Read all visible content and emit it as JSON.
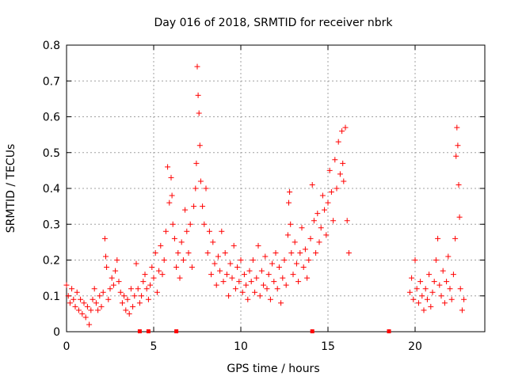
{
  "chart_data": {
    "type": "scatter",
    "title": "Day 016 of 2018, SRMTID for receiver nbrk",
    "xlabel": "GPS time / hours",
    "ylabel": "SRMTID / TECUs",
    "xlim": [
      0,
      24
    ],
    "ylim": [
      0,
      0.8
    ],
    "xticks": [
      0,
      5,
      10,
      15,
      20
    ],
    "yticks": [
      0,
      0.1,
      0.2,
      0.3,
      0.4,
      0.5,
      0.6,
      0.7,
      0.8
    ],
    "grid": true,
    "marker": "+",
    "color": "#ff0000",
    "gap_markers_x": [
      4.2,
      4.7,
      6.3,
      14.1,
      18.5
    ],
    "series": [
      {
        "name": "SRMTID",
        "points": [
          [
            0.0,
            0.13
          ],
          [
            0.1,
            0.1
          ],
          [
            0.2,
            0.08
          ],
          [
            0.3,
            0.12
          ],
          [
            0.4,
            0.09
          ],
          [
            0.5,
            0.07
          ],
          [
            0.6,
            0.11
          ],
          [
            0.7,
            0.06
          ],
          [
            0.8,
            0.09
          ],
          [
            0.9,
            0.05
          ],
          [
            1.0,
            0.08
          ],
          [
            1.1,
            0.04
          ],
          [
            1.2,
            0.07
          ],
          [
            1.3,
            0.02
          ],
          [
            1.4,
            0.06
          ],
          [
            1.5,
            0.09
          ],
          [
            1.6,
            0.12
          ],
          [
            1.7,
            0.08
          ],
          [
            1.8,
            0.06
          ],
          [
            1.9,
            0.1
          ],
          [
            2.0,
            0.07
          ],
          [
            2.1,
            0.11
          ],
          [
            2.2,
            0.26
          ],
          [
            2.25,
            0.21
          ],
          [
            2.3,
            0.18
          ],
          [
            2.4,
            0.09
          ],
          [
            2.5,
            0.12
          ],
          [
            2.6,
            0.15
          ],
          [
            2.7,
            0.13
          ],
          [
            2.8,
            0.17
          ],
          [
            2.9,
            0.2
          ],
          [
            3.0,
            0.14
          ],
          [
            3.1,
            0.11
          ],
          [
            3.2,
            0.08
          ],
          [
            3.3,
            0.1
          ],
          [
            3.4,
            0.06
          ],
          [
            3.5,
            0.09
          ],
          [
            3.6,
            0.05
          ],
          [
            3.7,
            0.12
          ],
          [
            3.8,
            0.07
          ],
          [
            3.9,
            0.1
          ],
          [
            4.0,
            0.19
          ],
          [
            4.1,
            0.12
          ],
          [
            4.2,
            0.08
          ],
          [
            4.3,
            0.1
          ],
          [
            4.4,
            0.14
          ],
          [
            4.5,
            0.16
          ],
          [
            4.6,
            0.12
          ],
          [
            4.7,
            0.09
          ],
          [
            4.8,
            0.13
          ],
          [
            4.9,
            0.18
          ],
          [
            5.0,
            0.15
          ],
          [
            5.1,
            0.22
          ],
          [
            5.2,
            0.11
          ],
          [
            5.3,
            0.17
          ],
          [
            5.4,
            0.24
          ],
          [
            5.5,
            0.16
          ],
          [
            5.6,
            0.2
          ],
          [
            5.7,
            0.28
          ],
          [
            5.8,
            0.46
          ],
          [
            5.9,
            0.36
          ],
          [
            6.0,
            0.43
          ],
          [
            6.05,
            0.38
          ],
          [
            6.1,
            0.3
          ],
          [
            6.2,
            0.26
          ],
          [
            6.3,
            0.18
          ],
          [
            6.4,
            0.22
          ],
          [
            6.5,
            0.15
          ],
          [
            6.6,
            0.25
          ],
          [
            6.7,
            0.2
          ],
          [
            6.8,
            0.34
          ],
          [
            6.9,
            0.28
          ],
          [
            7.0,
            0.22
          ],
          [
            7.1,
            0.3
          ],
          [
            7.2,
            0.18
          ],
          [
            7.3,
            0.35
          ],
          [
            7.4,
            0.4
          ],
          [
            7.45,
            0.47
          ],
          [
            7.5,
            0.74
          ],
          [
            7.55,
            0.66
          ],
          [
            7.6,
            0.61
          ],
          [
            7.65,
            0.52
          ],
          [
            7.7,
            0.42
          ],
          [
            7.8,
            0.35
          ],
          [
            7.9,
            0.3
          ],
          [
            8.0,
            0.4
          ],
          [
            8.1,
            0.22
          ],
          [
            8.2,
            0.28
          ],
          [
            8.3,
            0.16
          ],
          [
            8.4,
            0.25
          ],
          [
            8.5,
            0.19
          ],
          [
            8.6,
            0.13
          ],
          [
            8.7,
            0.21
          ],
          [
            8.8,
            0.17
          ],
          [
            8.9,
            0.28
          ],
          [
            9.0,
            0.14
          ],
          [
            9.1,
            0.22
          ],
          [
            9.2,
            0.16
          ],
          [
            9.3,
            0.1
          ],
          [
            9.4,
            0.19
          ],
          [
            9.5,
            0.15
          ],
          [
            9.6,
            0.24
          ],
          [
            9.7,
            0.12
          ],
          [
            9.8,
            0.18
          ],
          [
            9.9,
            0.14
          ],
          [
            10.0,
            0.2
          ],
          [
            10.1,
            0.11
          ],
          [
            10.2,
            0.16
          ],
          [
            10.3,
            0.13
          ],
          [
            10.4,
            0.09
          ],
          [
            10.5,
            0.17
          ],
          [
            10.6,
            0.14
          ],
          [
            10.7,
            0.2
          ],
          [
            10.8,
            0.11
          ],
          [
            10.9,
            0.15
          ],
          [
            11.0,
            0.24
          ],
          [
            11.1,
            0.1
          ],
          [
            11.2,
            0.17
          ],
          [
            11.3,
            0.13
          ],
          [
            11.4,
            0.21
          ],
          [
            11.5,
            0.12
          ],
          [
            11.6,
            0.16
          ],
          [
            11.7,
            0.09
          ],
          [
            11.8,
            0.19
          ],
          [
            11.9,
            0.14
          ],
          [
            12.0,
            0.22
          ],
          [
            12.1,
            0.12
          ],
          [
            12.2,
            0.18
          ],
          [
            12.3,
            0.08
          ],
          [
            12.4,
            0.15
          ],
          [
            12.5,
            0.2
          ],
          [
            12.6,
            0.13
          ],
          [
            12.7,
            0.27
          ],
          [
            12.75,
            0.36
          ],
          [
            12.8,
            0.39
          ],
          [
            12.85,
            0.3
          ],
          [
            12.9,
            0.22
          ],
          [
            13.0,
            0.16
          ],
          [
            13.1,
            0.25
          ],
          [
            13.2,
            0.19
          ],
          [
            13.3,
            0.14
          ],
          [
            13.4,
            0.22
          ],
          [
            13.5,
            0.29
          ],
          [
            13.6,
            0.18
          ],
          [
            13.7,
            0.23
          ],
          [
            13.8,
            0.15
          ],
          [
            13.9,
            0.2
          ],
          [
            14.0,
            0.26
          ],
          [
            14.1,
            0.41
          ],
          [
            14.2,
            0.31
          ],
          [
            14.3,
            0.22
          ],
          [
            14.4,
            0.33
          ],
          [
            14.5,
            0.25
          ],
          [
            14.6,
            0.29
          ],
          [
            14.7,
            0.38
          ],
          [
            14.8,
            0.34
          ],
          [
            14.9,
            0.27
          ],
          [
            15.0,
            0.36
          ],
          [
            15.1,
            0.45
          ],
          [
            15.2,
            0.39
          ],
          [
            15.3,
            0.31
          ],
          [
            15.4,
            0.48
          ],
          [
            15.5,
            0.4
          ],
          [
            15.6,
            0.53
          ],
          [
            15.7,
            0.44
          ],
          [
            15.8,
            0.56
          ],
          [
            15.85,
            0.47
          ],
          [
            15.9,
            0.42
          ],
          [
            16.0,
            0.57
          ],
          [
            16.1,
            0.31
          ],
          [
            16.2,
            0.22
          ],
          [
            19.7,
            0.11
          ],
          [
            19.8,
            0.15
          ],
          [
            19.9,
            0.09
          ],
          [
            20.0,
            0.2
          ],
          [
            20.1,
            0.12
          ],
          [
            20.2,
            0.08
          ],
          [
            20.3,
            0.14
          ],
          [
            20.4,
            0.1
          ],
          [
            20.5,
            0.06
          ],
          [
            20.6,
            0.12
          ],
          [
            20.7,
            0.09
          ],
          [
            20.8,
            0.16
          ],
          [
            20.9,
            0.07
          ],
          [
            21.0,
            0.11
          ],
          [
            21.1,
            0.14
          ],
          [
            21.2,
            0.2
          ],
          [
            21.3,
            0.26
          ],
          [
            21.4,
            0.13
          ],
          [
            21.5,
            0.1
          ],
          [
            21.6,
            0.17
          ],
          [
            21.7,
            0.08
          ],
          [
            21.8,
            0.14
          ],
          [
            21.9,
            0.21
          ],
          [
            22.0,
            0.12
          ],
          [
            22.1,
            0.09
          ],
          [
            22.2,
            0.16
          ],
          [
            22.3,
            0.26
          ],
          [
            22.35,
            0.49
          ],
          [
            22.4,
            0.57
          ],
          [
            22.45,
            0.52
          ],
          [
            22.5,
            0.41
          ],
          [
            22.55,
            0.32
          ],
          [
            22.6,
            0.12
          ],
          [
            22.7,
            0.06
          ],
          [
            22.8,
            0.09
          ]
        ]
      }
    ]
  }
}
